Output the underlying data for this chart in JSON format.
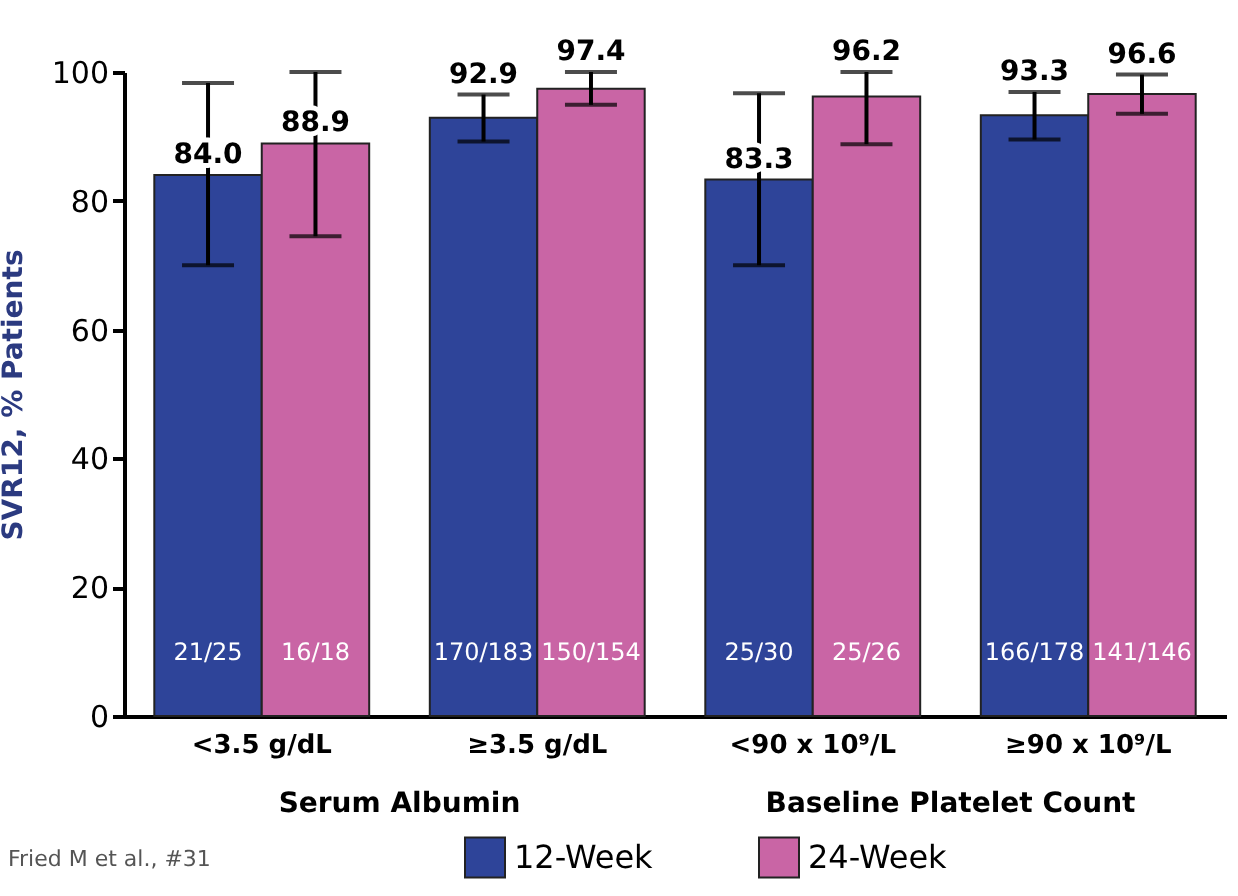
{
  "chart_data": {
    "type": "bar",
    "ylabel": "SVR12, % Patients",
    "categories": [
      "<3.5 g/dL",
      "≥3.5 g/dL",
      "<90 x 10⁹/L",
      "≥90 x 10⁹/L"
    ],
    "series": [
      {
        "name": "12-Week",
        "color": "#2e4499",
        "values": [
          84.0,
          92.9,
          83.3,
          93.3
        ],
        "value_labels": [
          "84.0",
          "92.9",
          "83.3",
          "93.3"
        ],
        "errors": [
          [
            70,
            98.3
          ],
          [
            89.2,
            96.5
          ],
          [
            70,
            96.7
          ],
          [
            89.5,
            96.9
          ]
        ]
      },
      {
        "name": "24-Week",
        "color": "#c965a5",
        "values": [
          88.9,
          97.4,
          96.2,
          96.6
        ],
        "value_labels": [
          "88.9",
          "97.4",
          "96.2",
          "96.6"
        ],
        "errors": [
          [
            74.5,
            100
          ],
          [
            94.9,
            100
          ],
          [
            88.8,
            100
          ],
          [
            93.5,
            99.6
          ]
        ]
      }
    ],
    "ylim": [
      0,
      100
    ],
    "yticks": [
      0,
      20,
      40,
      60,
      80,
      100
    ],
    "grid": false,
    "legend": "bottom",
    "annotations": [
      {
        "text": "21/25",
        "x": "<3.5 g/dL",
        "y": 10
      },
      {
        "text": "16/18",
        "x": "<3.5 g/dL",
        "y": 10
      },
      {
        "text": "170/183",
        "x": "≥3.5 g/dL",
        "y": 10
      },
      {
        "text": "150/154",
        "x": "≥3.5 g/dL",
        "y": 10
      },
      {
        "text": "25/30",
        "x": "<90 x 10⁹/L",
        "y": 10
      },
      {
        "text": "25/26",
        "x": "<90 x 10⁹/L",
        "y": 10
      },
      {
        "text": "166/178",
        "x": "≥90 x 10⁹/L",
        "y": 10
      },
      {
        "text": "141/146",
        "x": "≥90 x 10⁹/L",
        "y": 10
      },
      "Serum Albumin",
      "Baseline Platelet Count",
      "Fried M et al., #31"
    ]
  }
}
